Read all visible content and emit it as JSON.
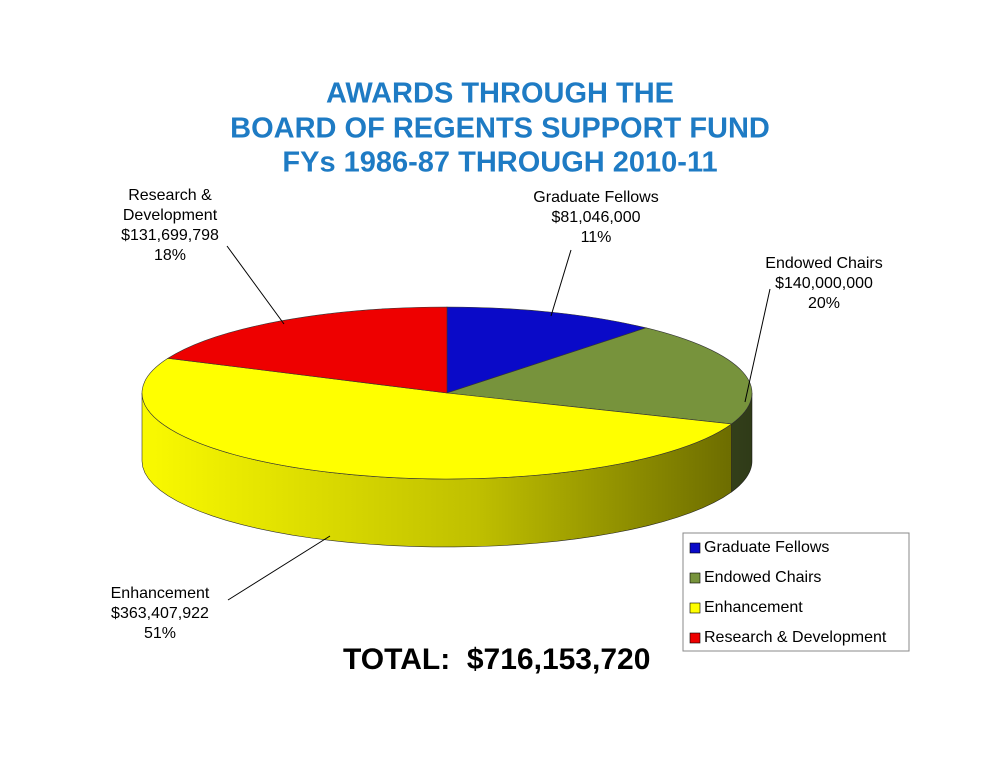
{
  "chart_data": {
    "type": "pie3d",
    "title": [
      "AWARDS THROUGH THE",
      "BOARD OF REGENTS SUPPORT FUND",
      "FYs 1986-87 THROUGH 2010-11"
    ],
    "categories": [
      "Graduate Fellows",
      "Endowed Chairs",
      "Enhancement",
      "Research & Development"
    ],
    "values": [
      81046000,
      140000000,
      363407922,
      131699798
    ],
    "value_labels": [
      "$81,046,000",
      "$140,000,000",
      "$363,407,922",
      "$131,699,798"
    ],
    "share_labels": [
      "11%",
      "20%",
      "51%",
      "18%"
    ],
    "colors": [
      "#0a0ac8",
      "#77933c",
      "#ffff00",
      "#ee0000"
    ],
    "legend": "bottom-right",
    "total_label": "TOTAL:  $716,153,720"
  }
}
